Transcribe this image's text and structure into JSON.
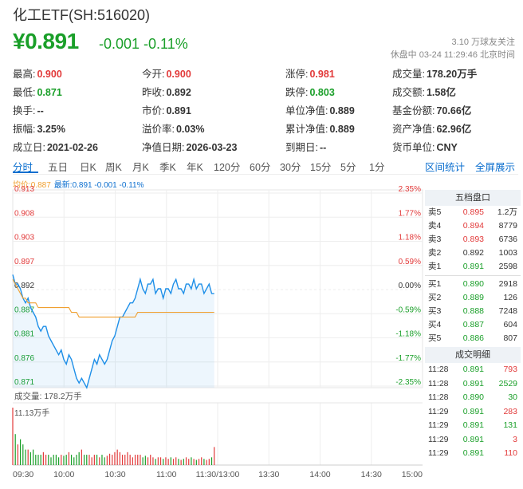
{
  "header": {
    "title": "化工ETF(SH:516020)",
    "price": "¥0.891",
    "change": "-0.001 -0.11%",
    "followers": "3.10 万球友关注",
    "status": "休盘中 03-24 11:29:46 北京时间"
  },
  "stats": [
    [
      {
        "l": "最高:",
        "v": "0.900",
        "c": "red"
      },
      {
        "l": "今开:",
        "v": "0.900",
        "c": "red"
      },
      {
        "l": "涨停:",
        "v": "0.981",
        "c": "red"
      },
      {
        "l": "成交量:",
        "v": "178.20万手",
        "c": ""
      }
    ],
    [
      {
        "l": "最低:",
        "v": "0.871",
        "c": "green"
      },
      {
        "l": "昨收:",
        "v": "0.892",
        "c": ""
      },
      {
        "l": "跌停:",
        "v": "0.803",
        "c": "green"
      },
      {
        "l": "成交额:",
        "v": "1.58亿",
        "c": ""
      }
    ],
    [
      {
        "l": "换手:",
        "v": "--",
        "c": ""
      },
      {
        "l": "市价:",
        "v": "0.891",
        "c": ""
      },
      {
        "l": "单位净值:",
        "v": "0.889",
        "c": ""
      },
      {
        "l": "基金份额:",
        "v": "70.66亿",
        "c": ""
      }
    ],
    [
      {
        "l": "振幅:",
        "v": "3.25%",
        "c": ""
      },
      {
        "l": "溢价率:",
        "v": "0.03%",
        "c": ""
      },
      {
        "l": "累计净值:",
        "v": "0.889",
        "c": ""
      },
      {
        "l": "资产净值:",
        "v": "62.96亿",
        "c": ""
      }
    ],
    [
      {
        "l": "成立日:",
        "v": "2021-02-26",
        "c": ""
      },
      {
        "l": "净值日期:",
        "v": "2026-03-23",
        "c": ""
      },
      {
        "l": "到期日:",
        "v": "--",
        "c": ""
      },
      {
        "l": "货币单位:",
        "v": "CNY",
        "c": ""
      }
    ]
  ],
  "tabs": [
    "分时",
    "五日",
    "日K",
    "周K",
    "月K",
    "季K",
    "年K",
    "120分",
    "60分",
    "30分",
    "15分",
    "5分",
    "1分"
  ],
  "right_tabs": [
    "区间统计",
    "全屏展示"
  ],
  "legend": {
    "avg": "均价:0.887",
    "latest": "最新:0.891 -0.001 -0.11%"
  },
  "chart_labels": {
    "left": [
      "0.913",
      "0.908",
      "0.903",
      "0.897",
      "0.892",
      "0.887",
      "0.881",
      "0.876",
      "0.871"
    ],
    "right": [
      "2.35%",
      "1.77%",
      "1.18%",
      "0.59%",
      "0.00%",
      "-0.59%",
      "-1.18%",
      "-1.77%",
      "-2.35%"
    ],
    "volume_title": "成交量: 178.2万手",
    "volume_max": "11.13万手",
    "times": [
      "09:30",
      "10:00",
      "10:30",
      "11:00",
      "11:30/13:00",
      "13:30",
      "14:00",
      "14:30",
      "15:00"
    ]
  },
  "colors": {
    "up": "#e23a3a",
    "down": "#1a9f29",
    "price_line": "#1e8fe8",
    "avg_line": "#f0a030",
    "accent": "#0c6fcf"
  },
  "order_book": {
    "title": "五档盘口",
    "asks": [
      {
        "label": "卖5",
        "price": "0.895",
        "vol": "1.2万"
      },
      {
        "label": "卖4",
        "price": "0.894",
        "vol": "8779"
      },
      {
        "label": "卖3",
        "price": "0.893",
        "vol": "6736"
      },
      {
        "label": "卖2",
        "price": "0.892",
        "vol": "1003"
      },
      {
        "label": "卖1",
        "price": "0.891",
        "vol": "2598"
      }
    ],
    "bids": [
      {
        "label": "买1",
        "price": "0.890",
        "vol": "2918"
      },
      {
        "label": "买2",
        "price": "0.889",
        "vol": "126"
      },
      {
        "label": "买3",
        "price": "0.888",
        "vol": "7248"
      },
      {
        "label": "买4",
        "price": "0.887",
        "vol": "604"
      },
      {
        "label": "买5",
        "price": "0.886",
        "vol": "807"
      }
    ]
  },
  "trades": {
    "title": "成交明细",
    "rows": [
      {
        "time": "11:28",
        "price": "0.891",
        "vol": "793",
        "c": "red"
      },
      {
        "time": "11:28",
        "price": "0.891",
        "vol": "2529",
        "c": "green"
      },
      {
        "time": "11:28",
        "price": "0.890",
        "vol": "30",
        "c": "green"
      },
      {
        "time": "11:29",
        "price": "0.891",
        "vol": "283",
        "c": "red"
      },
      {
        "time": "11:29",
        "price": "0.891",
        "vol": "131",
        "c": "green"
      },
      {
        "time": "11:29",
        "price": "0.891",
        "vol": "3",
        "c": "red"
      },
      {
        "time": "11:29",
        "price": "0.891",
        "vol": "110",
        "c": "red"
      }
    ]
  },
  "chart_data": {
    "type": "line",
    "prev_close": 0.892,
    "ylim": [
      0.871,
      0.913
    ],
    "x_range_minutes": [
      0,
      240
    ],
    "series": [
      {
        "values": [
          0.895,
          0.893,
          0.893,
          0.892,
          0.89,
          0.889,
          0.89,
          0.888,
          0.887,
          0.886,
          0.884,
          0.883,
          0.884,
          0.884,
          0.882,
          0.881,
          0.88,
          0.879,
          0.878,
          0.879,
          0.877,
          0.876,
          0.878,
          0.877,
          0.875,
          0.873,
          0.872,
          0.873,
          0.872,
          0.871,
          0.873,
          0.875,
          0.877,
          0.876,
          0.878,
          0.877,
          0.876,
          0.877,
          0.879,
          0.881,
          0.882,
          0.884,
          0.886,
          0.886,
          0.887,
          0.888,
          0.889,
          0.889,
          0.89,
          0.892,
          0.894,
          0.892,
          0.891,
          0.893,
          0.893,
          0.894,
          0.891,
          0.892,
          0.892,
          0.89,
          0.892,
          0.892,
          0.891,
          0.893,
          0.894,
          0.892,
          0.892,
          0.891,
          0.893,
          0.893,
          0.892,
          0.894,
          0.892,
          0.893,
          0.893,
          0.891,
          0.892,
          0.893,
          0.891,
          0.891
        ]
      },
      {
        "values": [
          0.894,
          0.893,
          0.892,
          0.891,
          0.89,
          0.89,
          0.889,
          0.889,
          0.889,
          0.889,
          0.888,
          0.888,
          0.888,
          0.888,
          0.888,
          0.888,
          0.888,
          0.888,
          0.888,
          0.888,
          0.888,
          0.888,
          0.888,
          0.887,
          0.887,
          0.887,
          0.886,
          0.886,
          0.886,
          0.886,
          0.886,
          0.886,
          0.886,
          0.886,
          0.886,
          0.886,
          0.886,
          0.886,
          0.886,
          0.886,
          0.886,
          0.886,
          0.886,
          0.886,
          0.886,
          0.886,
          0.886,
          0.886,
          0.886,
          0.887,
          0.887,
          0.887,
          0.887,
          0.887,
          0.887,
          0.887,
          0.887,
          0.887,
          0.887,
          0.887,
          0.887,
          0.887,
          0.887,
          0.887,
          0.887,
          0.887,
          0.887,
          0.887,
          0.887,
          0.887,
          0.887,
          0.887,
          0.887,
          0.887,
          0.887,
          0.887,
          0.887,
          0.887,
          0.887,
          0.887
        ]
      }
    ],
    "volume_ylim": [
      0,
      11.13
    ],
    "volume": [
      11.13,
      6,
      4,
      5,
      4,
      3,
      3,
      2.5,
      3,
      2,
      2,
      2,
      2.5,
      2,
      2,
      1.5,
      2,
      2,
      1.5,
      2,
      1.8,
      2,
      2.5,
      2,
      1.5,
      2,
      2.5,
      3,
      2,
      2,
      2,
      1.5,
      2,
      2,
      1.5,
      2,
      1.5,
      1.8,
      2.2,
      2,
      2.5,
      3,
      2.5,
      2,
      2,
      2.5,
      2,
      1.5,
      2,
      2,
      2,
      1.5,
      1.8,
      1.5,
      2,
      1.5,
      1.2,
      1.5,
      1.5,
      1.2,
      1.5,
      1.2,
      1.5,
      1.2,
      1.5,
      1.2,
      1,
      1.2,
      1.5,
      1.2,
      1.5,
      1.2,
      1,
      1.2,
      1.5,
      1.2,
      1,
      1.2,
      1.5,
      3.5
    ]
  }
}
